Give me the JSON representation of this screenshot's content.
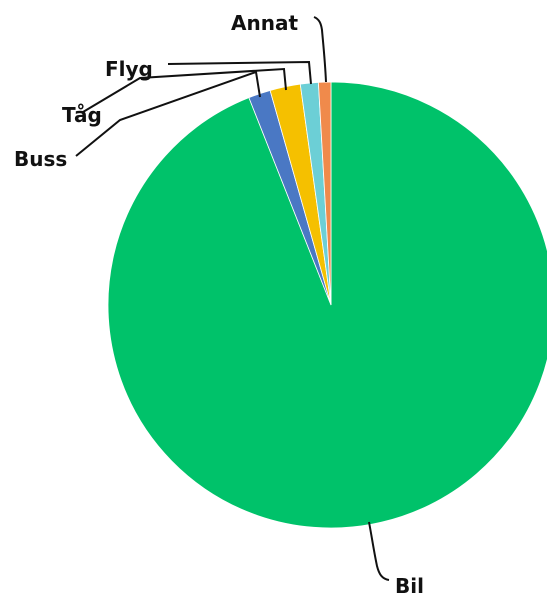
{
  "chart_data": {
    "type": "pie",
    "slices": [
      {
        "label": "Bil",
        "value": 94.0,
        "color": "#00c26a"
      },
      {
        "label": "Buss",
        "value": 1.6,
        "color": "#4a78c4"
      },
      {
        "label": "Tåg",
        "value": 2.2,
        "color": "#f5c000"
      },
      {
        "label": "Flyg",
        "value": 1.3,
        "color": "#6ccfd6"
      },
      {
        "label": "Annat",
        "value": 0.9,
        "color": "#f08a4b"
      }
    ],
    "start_angle_deg": 0,
    "direction": "clockwise"
  }
}
